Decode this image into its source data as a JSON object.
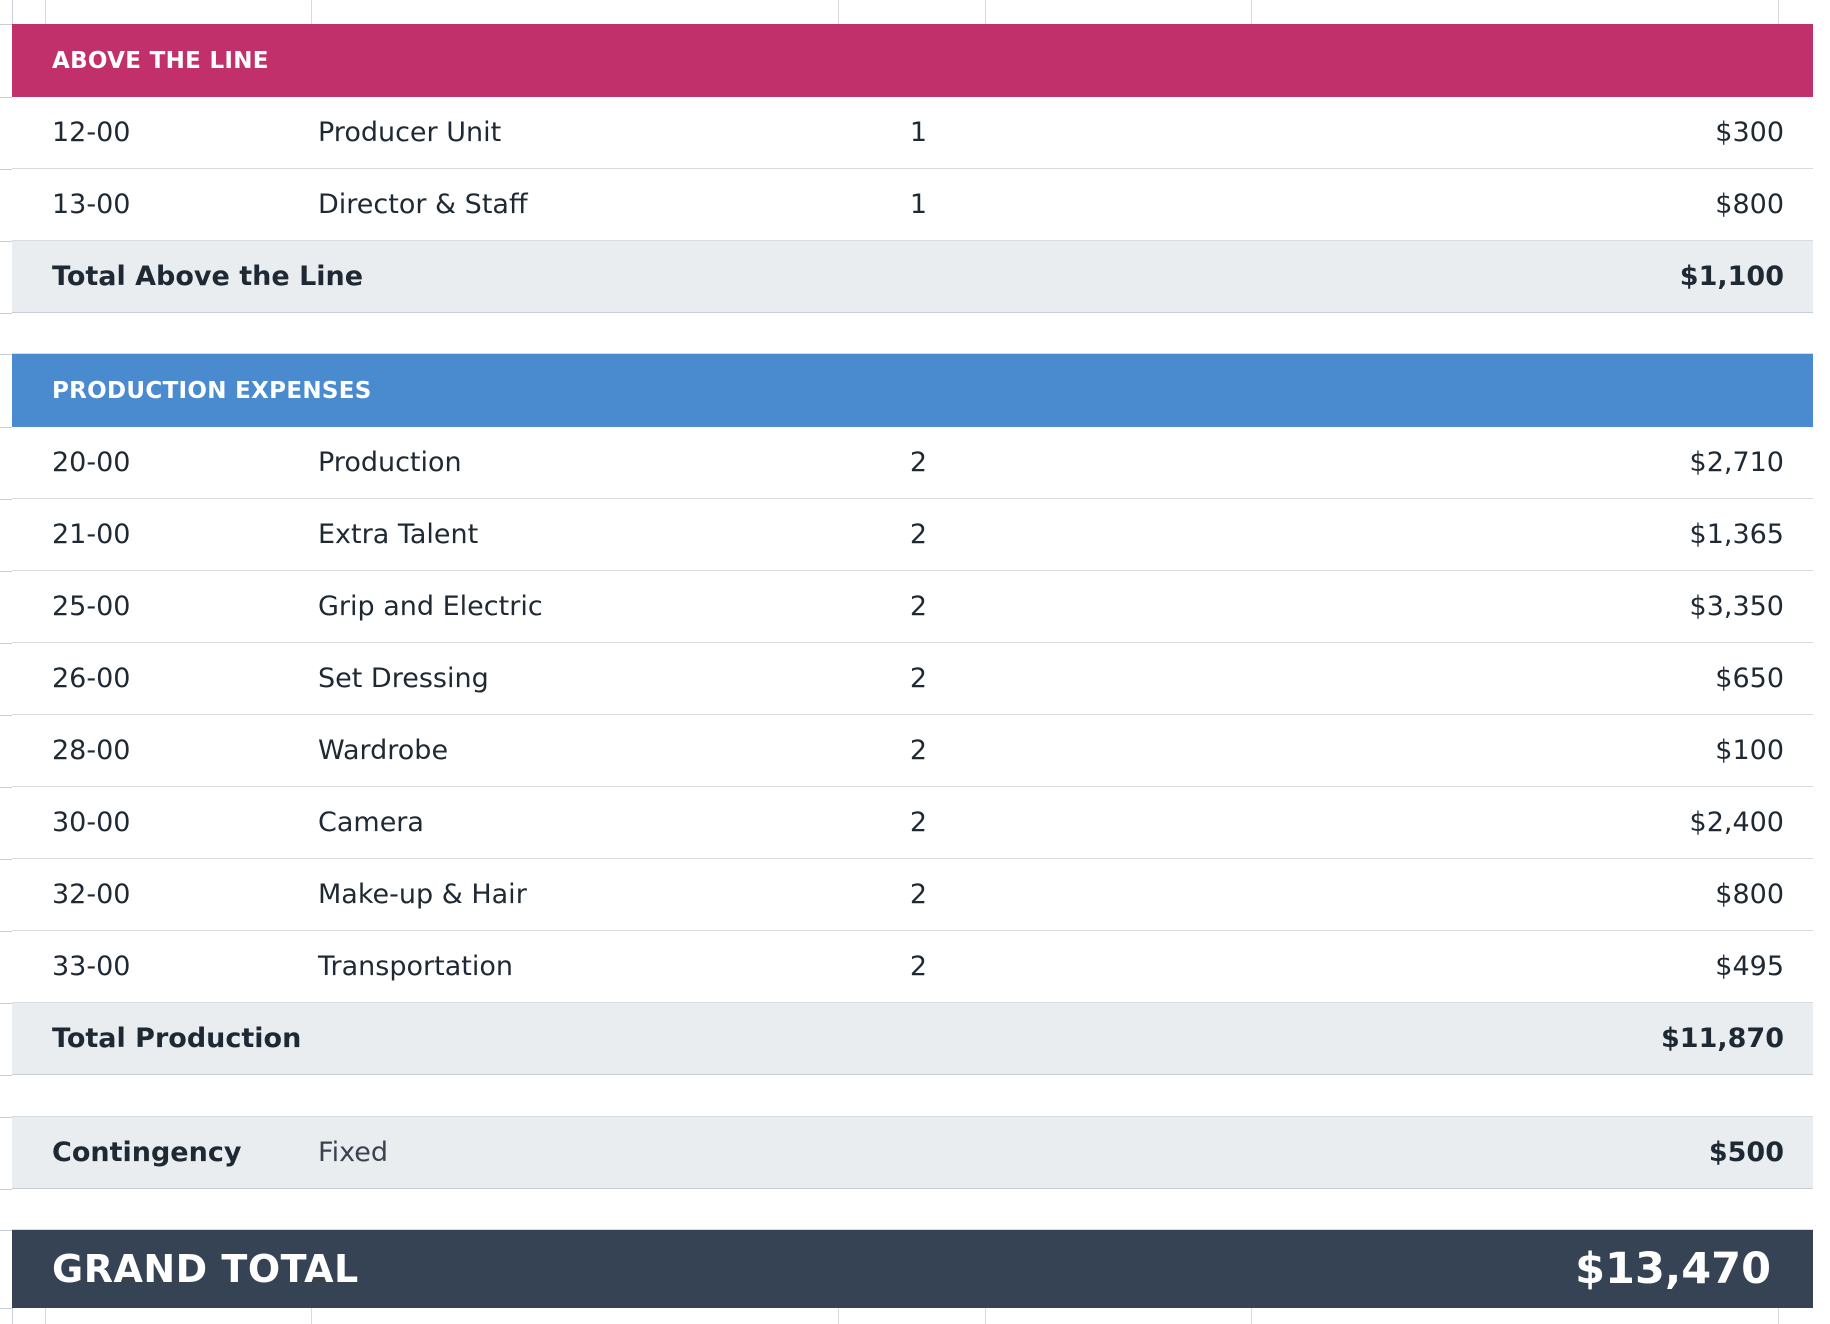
{
  "colors": {
    "above_the_line_band": "#c2306c",
    "production_band": "#4a8bd0",
    "total_row_bg": "#e9edf0",
    "grand_total_bg": "#364354"
  },
  "above_the_line": {
    "header": "ABOVE THE LINE",
    "rows": [
      {
        "code": "12-00",
        "description": "Producer Unit",
        "qty": "1",
        "amount": "$300"
      },
      {
        "code": "13-00",
        "description": "Director & Staff",
        "qty": "1",
        "amount": "$800"
      }
    ],
    "total_label": "Total Above the Line",
    "total_amount": "$1,100"
  },
  "production": {
    "header": "PRODUCTION EXPENSES",
    "rows": [
      {
        "code": "20-00",
        "description": "Production",
        "qty": "2",
        "amount": "$2,710"
      },
      {
        "code": "21-00",
        "description": "Extra Talent",
        "qty": "2",
        "amount": "$1,365"
      },
      {
        "code": "25-00",
        "description": "Grip and Electric",
        "qty": "2",
        "amount": "$3,350"
      },
      {
        "code": "26-00",
        "description": "Set Dressing",
        "qty": "2",
        "amount": "$650"
      },
      {
        "code": "28-00",
        "description": "Wardrobe",
        "qty": "2",
        "amount": "$100"
      },
      {
        "code": "30-00",
        "description": "Camera",
        "qty": "2",
        "amount": "$2,400"
      },
      {
        "code": "32-00",
        "description": "Make-up & Hair",
        "qty": "2",
        "amount": "$800"
      },
      {
        "code": "33-00",
        "description": "Transportation",
        "qty": "2",
        "amount": "$495"
      }
    ],
    "total_label": "Total Production",
    "total_amount": "$11,870"
  },
  "contingency": {
    "label": "Contingency",
    "type": "Fixed",
    "amount": "$500"
  },
  "grand_total": {
    "label": "GRAND TOTAL",
    "amount": "$13,470"
  }
}
